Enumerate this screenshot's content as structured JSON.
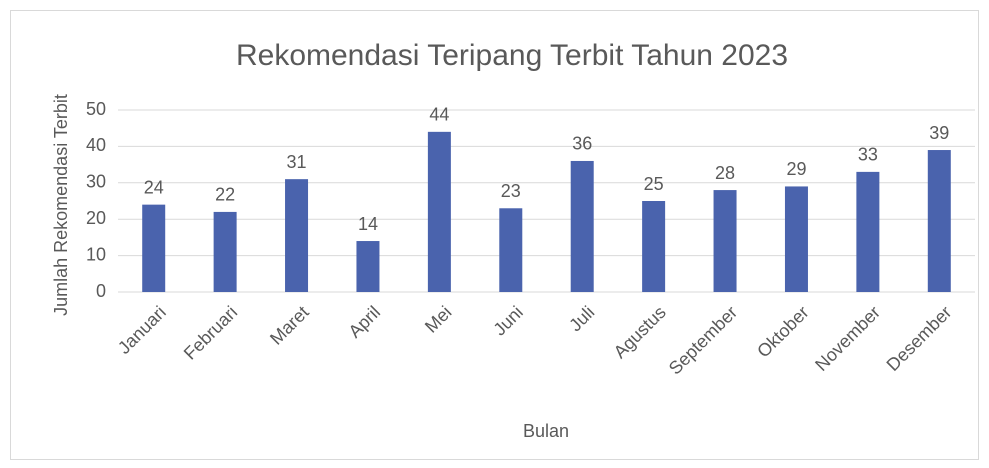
{
  "chart_data": {
    "type": "bar",
    "title": "Rekomendasi Teripang Terbit Tahun 2023",
    "x_label": "Bulan",
    "y_label": "Jumlah Rekomendasi Terbit",
    "categories": [
      "Januari",
      "Februari",
      "Maret",
      "April",
      "Mei",
      "Juni",
      "Juli",
      "Agustus",
      "September",
      "Oktober",
      "November",
      "Desember"
    ],
    "values": [
      24,
      22,
      31,
      14,
      44,
      23,
      36,
      25,
      28,
      29,
      33,
      39
    ],
    "color": "#4a63ad",
    "ylim": [
      0,
      50
    ],
    "yticks": [
      0,
      10,
      20,
      30,
      40,
      50
    ],
    "grid": true
  }
}
